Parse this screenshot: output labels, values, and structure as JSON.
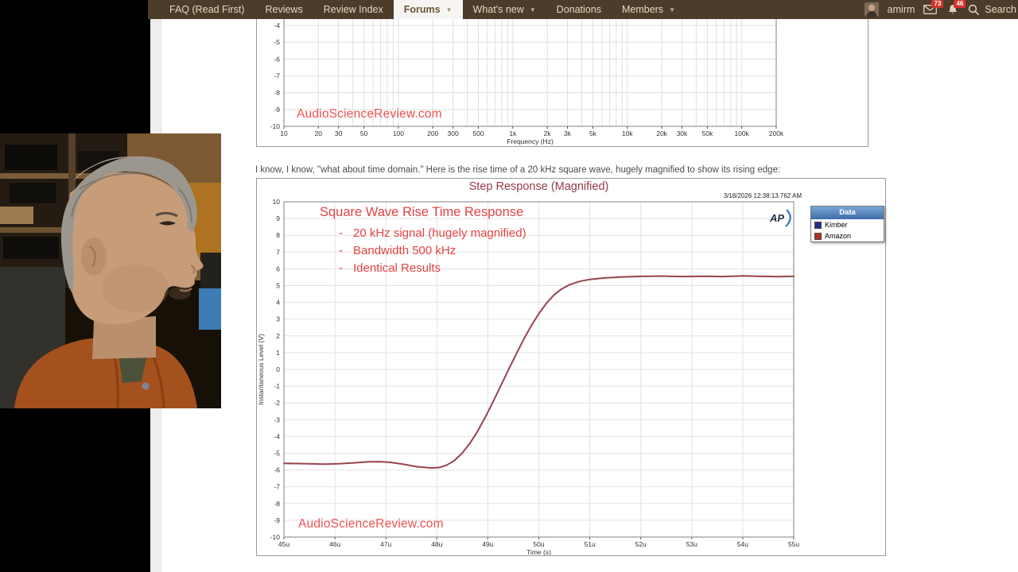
{
  "nav": {
    "items": [
      {
        "label": "FAQ (Read First)",
        "active": false,
        "dropdown": false
      },
      {
        "label": "Reviews",
        "active": false,
        "dropdown": false
      },
      {
        "label": "Review Index",
        "active": false,
        "dropdown": false
      },
      {
        "label": "Forums",
        "active": true,
        "dropdown": true
      },
      {
        "label": "What's new",
        "active": false,
        "dropdown": true
      },
      {
        "label": "Donations",
        "active": false,
        "dropdown": false
      },
      {
        "label": "Members",
        "active": false,
        "dropdown": true
      }
    ],
    "dropdown_glyph": "▼",
    "user": {
      "name": "amirm",
      "inbox_badge": "73",
      "alerts_badge": "46"
    },
    "search_label": "Search"
  },
  "page": {
    "paragraph": "I know, I know, \"what about time domain.\" Here is the rise time of a 20 kHz square wave, hugely magnified to show its rising edge:"
  },
  "chart_data": [
    {
      "type": "line",
      "title": "",
      "xlabel": "Frequency (Hz)",
      "x_scale": "log",
      "xlim": [
        10,
        200000
      ],
      "x_tick_labels": [
        "10",
        "20",
        "30",
        "50",
        "100",
        "200",
        "300",
        "500",
        "1k",
        "2k",
        "3k",
        "5k",
        "10k",
        "20k",
        "30k",
        "50k",
        "100k",
        "200k"
      ],
      "x_tick_values": [
        10,
        20,
        30,
        50,
        100,
        200,
        300,
        500,
        1000,
        2000,
        3000,
        5000,
        10000,
        20000,
        30000,
        50000,
        100000,
        200000
      ],
      "y_ticks": [
        -4,
        -5,
        -6,
        -7,
        -8,
        -9,
        -10
      ],
      "ylim_visible": [
        -10,
        -4
      ],
      "grid": true,
      "watermark": "AudioScienceReview.com",
      "series": []
    },
    {
      "type": "line",
      "title": "Step Response (Magnified)",
      "timestamp": "3/18/2026 12:38:13.762 AM",
      "xlabel": "Time (s)",
      "ylabel": "Instantaneous Level (V)",
      "xlim": [
        45,
        55
      ],
      "ylim": [
        -10,
        10
      ],
      "x_tick_labels": [
        "45u",
        "46u",
        "47u",
        "48u",
        "49u",
        "50u",
        "51u",
        "52u",
        "53u",
        "54u",
        "55u"
      ],
      "x_tick_values": [
        45,
        46,
        47,
        48,
        49,
        50,
        51,
        52,
        53,
        54,
        55
      ],
      "grid": true,
      "logo": "AP",
      "watermark": "AudioScienceReview.com",
      "annotations": {
        "heading": "Square Wave Rise Time Response",
        "bullet_prefix": "-",
        "bullets": [
          "20 kHz signal (hugely magnified)",
          "Bandwidth 500 kHz",
          "Identical Results"
        ]
      },
      "legend": {
        "title": "Data",
        "position": "top-right-outside",
        "entries": [
          {
            "name": "Kimber",
            "color": "#232e8a"
          },
          {
            "name": "Amazon",
            "color": "#b23228"
          }
        ]
      },
      "curve_color": "#97434c",
      "x": [
        45.0,
        45.4,
        45.8,
        46.1,
        46.4,
        46.65,
        46.9,
        47.1,
        47.35,
        47.6,
        47.9,
        48.05,
        48.2,
        48.35,
        48.5,
        48.65,
        48.8,
        48.95,
        49.1,
        49.25,
        49.4,
        49.55,
        49.7,
        49.85,
        50.0,
        50.15,
        50.3,
        50.45,
        50.6,
        50.8,
        51.0,
        51.3,
        51.6,
        52.0,
        52.4,
        52.8,
        53.2,
        53.6,
        54.0,
        54.4,
        54.7,
        55.0
      ],
      "y": [
        -5.6,
        -5.62,
        -5.65,
        -5.62,
        -5.57,
        -5.51,
        -5.5,
        -5.55,
        -5.66,
        -5.8,
        -5.88,
        -5.85,
        -5.7,
        -5.42,
        -4.98,
        -4.4,
        -3.68,
        -2.85,
        -1.95,
        -1.0,
        -0.05,
        0.88,
        1.78,
        2.6,
        3.32,
        3.95,
        4.45,
        4.8,
        5.05,
        5.25,
        5.37,
        5.46,
        5.51,
        5.55,
        5.57,
        5.54,
        5.56,
        5.54,
        5.58,
        5.55,
        5.53,
        5.56
      ]
    }
  ]
}
